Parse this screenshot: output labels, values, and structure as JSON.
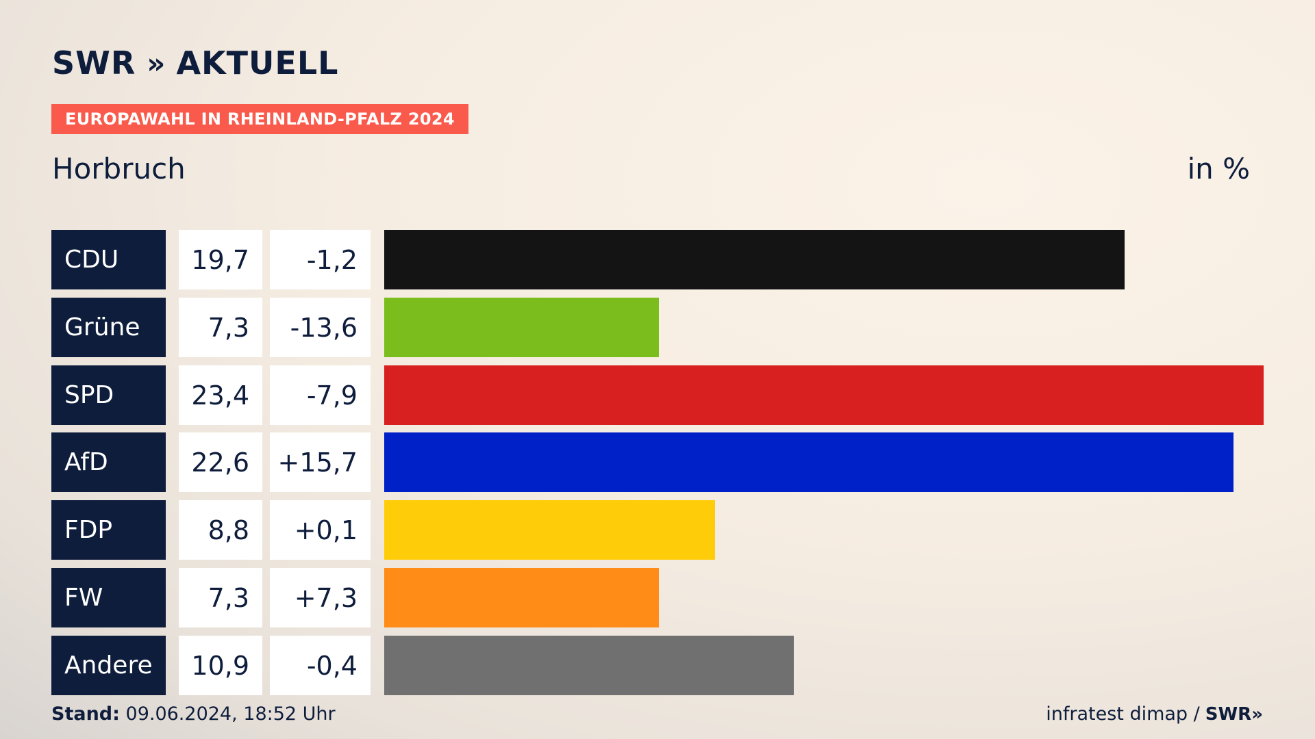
{
  "header": {
    "logo_text": "SWR",
    "logo_chevrons": "»",
    "logo_suffix": "AKTUELL",
    "tag": "EUROPAWAHL IN RHEINLAND-PFALZ 2024",
    "place": "Horbruch",
    "unit": "in %"
  },
  "chart_data": {
    "type": "bar",
    "orientation": "horizontal",
    "title": "Horbruch",
    "ylabel": "in %",
    "categories": [
      "CDU",
      "Grüne",
      "SPD",
      "AfD",
      "FDP",
      "FW",
      "Andere"
    ],
    "values": [
      19.7,
      7.3,
      23.4,
      22.6,
      8.8,
      7.3,
      10.9
    ],
    "value_labels": [
      "19,7",
      "7,3",
      "23,4",
      "22,6",
      "8,8",
      "7,3",
      "10,9"
    ],
    "diff_labels": [
      "-1,2",
      "-13,6",
      "-7,9",
      "+15,7",
      "+0,1",
      "+7,3",
      "-0,4"
    ],
    "diffs": [
      -1.2,
      -13.6,
      -7.9,
      15.7,
      0.1,
      7.3,
      -0.4
    ],
    "colors": [
      "#141414",
      "#7bbd1c",
      "#d7201f",
      "#0021c8",
      "#ffcc0a",
      "#ff8c17",
      "#707070"
    ],
    "xlim": [
      0,
      23.4
    ]
  },
  "footer": {
    "stand_label": "Stand:",
    "stand_value": "09.06.2024, 18:52 Uhr",
    "source": "infratest dimap /",
    "source_logo": "SWR»"
  }
}
